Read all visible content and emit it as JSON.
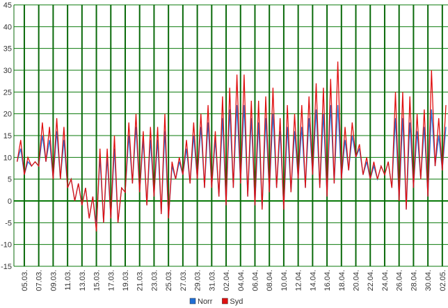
{
  "chart_data": {
    "type": "line",
    "categories": [
      null,
      null,
      "05.03.",
      null,
      null,
      null,
      "07.03.",
      null,
      null,
      null,
      "09.03.",
      null,
      null,
      null,
      "11.03.",
      null,
      null,
      null,
      "13.03.",
      null,
      null,
      null,
      "15.03.",
      null,
      null,
      null,
      "17.03.",
      null,
      null,
      null,
      "19.03.",
      null,
      null,
      null,
      "21.03.",
      null,
      null,
      null,
      "23.03.",
      null,
      null,
      null,
      "25.03.",
      null,
      null,
      null,
      "27.03.",
      null,
      null,
      null,
      "29.03.",
      null,
      null,
      null,
      "31.03.",
      null,
      null,
      null,
      "02.04.",
      null,
      null,
      null,
      "04.04.",
      null,
      null,
      null,
      "06.04.",
      null,
      null,
      null,
      "08.04.",
      null,
      null,
      null,
      "10.04.",
      null,
      null,
      null,
      "12.04.",
      null,
      null,
      null,
      "14.04.",
      null,
      null,
      null,
      "16.04.",
      null,
      null,
      null,
      "18.04.",
      null,
      null,
      null,
      "20.04.",
      null,
      null,
      null,
      "22.04.",
      null,
      null,
      null,
      "24.04.",
      null,
      null,
      null,
      "26.04.",
      null,
      null,
      null,
      "28.04.",
      null,
      null,
      null,
      "30.04.",
      null,
      null,
      null,
      "02.05.",
      null
    ],
    "series": [
      {
        "name": "Norr",
        "color": "#1f6fd6",
        "values": [
          9,
          12,
          6,
          9,
          8,
          9,
          8,
          15,
          9,
          14,
          5,
          16,
          5,
          14,
          3,
          5,
          0,
          4,
          -1,
          3,
          -4,
          1,
          -6,
          10,
          -5,
          10,
          -4,
          12,
          -5,
          3,
          2,
          15,
          4,
          17,
          2,
          14,
          -1,
          14,
          1,
          14,
          -3,
          16,
          -4,
          8,
          5,
          9,
          6,
          12,
          4,
          15,
          5,
          17,
          3,
          18,
          3,
          14,
          1,
          19,
          -1,
          21,
          3,
          22,
          4,
          22,
          1,
          19,
          -1,
          18,
          -2,
          19,
          2,
          20,
          3,
          16,
          -2,
          17,
          2,
          16,
          5,
          17,
          3,
          19,
          6,
          21,
          3,
          20,
          1,
          22,
          4,
          22,
          5,
          14,
          7,
          15,
          10,
          12,
          6,
          9,
          5,
          8,
          5,
          8,
          6,
          9,
          3,
          19,
          0,
          19,
          -2,
          18,
          3,
          16,
          5,
          17,
          1,
          21,
          8,
          15,
          7,
          17
        ]
      },
      {
        "name": "Syd",
        "color": "#e01010",
        "values": [
          9,
          14,
          6,
          10,
          8,
          9,
          8,
          18,
          9,
          17,
          5,
          19,
          5,
          17,
          3,
          5,
          0,
          4,
          -1,
          3,
          -4,
          1,
          -7,
          12,
          -5,
          12,
          -4,
          15,
          -5,
          3,
          2,
          18,
          4,
          20,
          2,
          16,
          -1,
          17,
          1,
          17,
          -3,
          20,
          -4,
          9,
          5,
          10,
          6,
          14,
          4,
          18,
          5,
          20,
          3,
          22,
          3,
          16,
          1,
          24,
          -1,
          26,
          3,
          29,
          4,
          29,
          1,
          23,
          -1,
          23,
          -2,
          24,
          2,
          26,
          3,
          19,
          -2,
          22,
          2,
          20,
          5,
          22,
          3,
          24,
          6,
          27,
          3,
          26,
          1,
          28,
          4,
          32,
          5,
          17,
          7,
          18,
          10,
          13,
          6,
          10,
          5,
          9,
          5,
          8,
          6,
          9,
          3,
          25,
          0,
          25,
          -2,
          24,
          3,
          20,
          5,
          21,
          1,
          30,
          8,
          19,
          7,
          22
        ]
      }
    ],
    "ylim": [
      -15,
      45
    ],
    "yticks": [
      -15,
      -10,
      -5,
      0,
      5,
      10,
      15,
      20,
      25,
      30,
      35,
      40,
      45
    ],
    "grid": true,
    "legend": "bottom"
  }
}
